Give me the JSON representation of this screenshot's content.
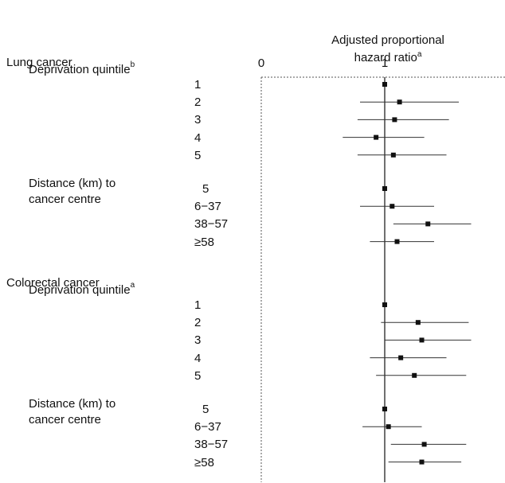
{
  "chart_data": {
    "type": "forest",
    "title": "Adjusted proportional hazard ratio",
    "title_line1": "Adjusted proportional",
    "title_line2": "hazard ratio",
    "title_sup": "a",
    "x_ticks": [
      "0",
      "1",
      "2"
    ],
    "xlim": [
      0,
      2
    ],
    "reference_line": 1,
    "groups": [
      {
        "cancer": "Lung cancer",
        "sections": [
          {
            "label": "Deprivation quintile",
            "label_sup": "b",
            "label_line2": "",
            "rows": [
              {
                "category": "1",
                "hr": 1.0,
                "lo": 1.0,
                "hi": 1.0
              },
              {
                "category": "2",
                "hr": 1.12,
                "lo": 0.8,
                "hi": 1.6
              },
              {
                "category": "3",
                "hr": 1.08,
                "lo": 0.78,
                "hi": 1.52
              },
              {
                "category": "4",
                "hr": 0.93,
                "lo": 0.66,
                "hi": 1.32
              },
              {
                "category": "5",
                "hr": 1.07,
                "lo": 0.78,
                "hi": 1.5
              }
            ]
          },
          {
            "label": "Distance (km) to",
            "label_sup": "",
            "label_line2": "cancer centre",
            "rows": [
              {
                "category": "5",
                "hr": 1.0,
                "lo": 1.0,
                "hi": 1.0
              },
              {
                "category": "6−37",
                "hr": 1.06,
                "lo": 0.8,
                "hi": 1.4
              },
              {
                "category": "38−57",
                "hr": 1.35,
                "lo": 1.07,
                "hi": 1.7
              },
              {
                "category": "≥58",
                "hr": 1.1,
                "lo": 0.88,
                "hi": 1.4
              }
            ]
          }
        ]
      },
      {
        "cancer": "Colorectal cancer",
        "sections": [
          {
            "label": "Deprivation quintile",
            "label_sup": "a",
            "label_line2": "",
            "rows": [
              {
                "category": "1",
                "hr": 1.0,
                "lo": 1.0,
                "hi": 1.0
              },
              {
                "category": "2",
                "hr": 1.27,
                "lo": 0.97,
                "hi": 1.68
              },
              {
                "category": "3",
                "hr": 1.3,
                "lo": 1.0,
                "hi": 1.7
              },
              {
                "category": "4",
                "hr": 1.13,
                "lo": 0.88,
                "hi": 1.5
              },
              {
                "category": "5",
                "hr": 1.24,
                "lo": 0.93,
                "hi": 1.66
              }
            ]
          },
          {
            "label": "Distance (km) to",
            "label_sup": "",
            "label_line2": "cancer centre",
            "rows": [
              {
                "category": "5",
                "hr": 1.0,
                "lo": 1.0,
                "hi": 1.0
              },
              {
                "category": "6−37",
                "hr": 1.03,
                "lo": 0.82,
                "hi": 1.3
              },
              {
                "category": "38−57",
                "hr": 1.32,
                "lo": 1.05,
                "hi": 1.66
              },
              {
                "category": "≥58",
                "hr": 1.3,
                "lo": 1.03,
                "hi": 1.62
              }
            ]
          }
        ]
      }
    ]
  }
}
